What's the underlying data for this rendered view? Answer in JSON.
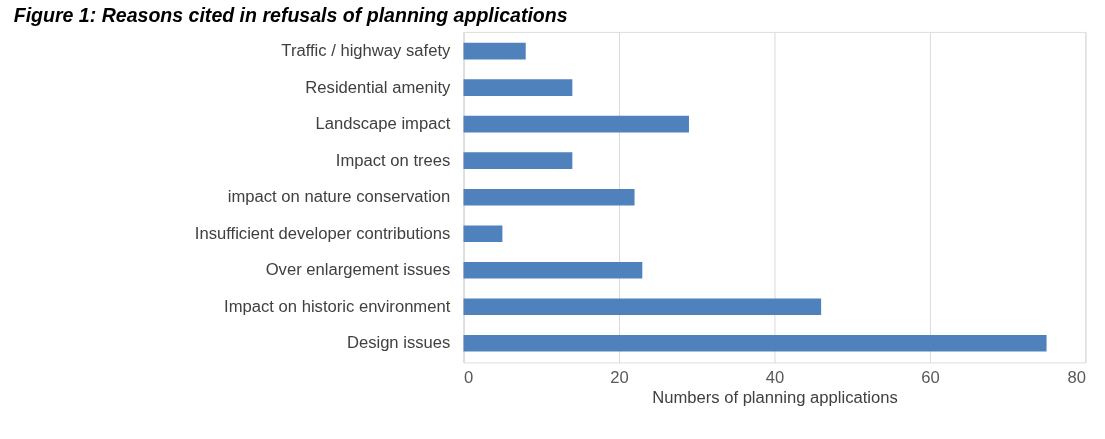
{
  "chart_data": {
    "type": "bar",
    "orientation": "horizontal",
    "title": "Figure 1: Reasons cited in refusals of planning applications",
    "categories": [
      "Traffic / highway safety",
      "Residential amenity",
      "Landscape impact",
      "Impact on trees",
      "impact on nature conservation",
      "Insufficient developer contributions",
      "Over enlargement issues",
      "Impact on historic environment",
      "Design issues"
    ],
    "values": [
      8,
      14,
      29,
      14,
      22,
      5,
      23,
      46,
      75
    ],
    "color": "#4f81bd",
    "xlabel": "Numbers of planning applications",
    "xlim": [
      0,
      80
    ],
    "xticks": [
      0,
      20,
      40,
      60,
      80
    ],
    "grid": "x"
  }
}
